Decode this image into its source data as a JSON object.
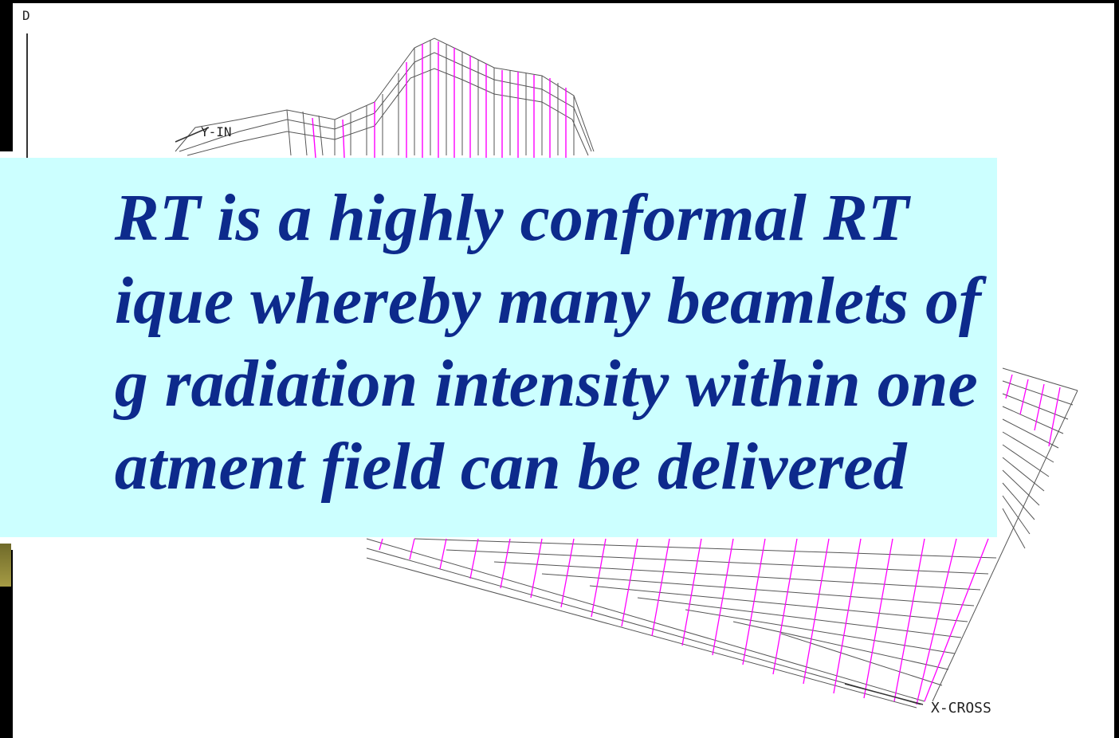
{
  "plot": {
    "axis_d": "D",
    "axis_y": "Y-IN",
    "axis_x": "X-CROSS"
  },
  "overlay": {
    "lines": [
      "RT is a highly conformal RT",
      "ique whereby many beamlets of",
      "g radiation intensity within one",
      "atment field can be delivered"
    ]
  },
  "colors": {
    "overlay_background": "#ccffff",
    "overlay_text": "#0d2a8c",
    "mesh_grey": "#555555",
    "mesh_magenta": "#ff00ff"
  }
}
